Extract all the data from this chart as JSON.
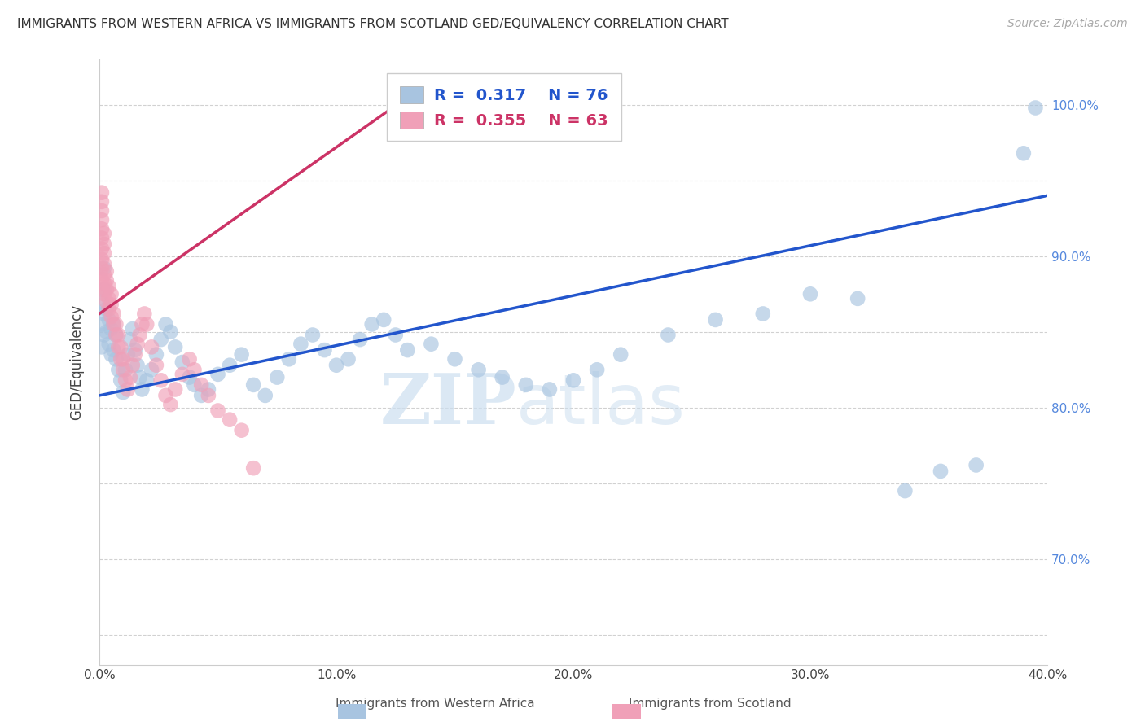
{
  "title": "IMMIGRANTS FROM WESTERN AFRICA VS IMMIGRANTS FROM SCOTLAND GED/EQUIVALENCY CORRELATION CHART",
  "source": "Source: ZipAtlas.com",
  "ylabel": "GED/Equivalency",
  "xlim": [
    0.0,
    0.4
  ],
  "ylim": [
    0.63,
    1.03
  ],
  "xticks": [
    0.0,
    0.05,
    0.1,
    0.15,
    0.2,
    0.25,
    0.3,
    0.35,
    0.4
  ],
  "xticklabels": [
    "0.0%",
    "",
    "10.0%",
    "",
    "20.0%",
    "",
    "30.0%",
    "",
    "40.0%"
  ],
  "yticks": [
    0.65,
    0.7,
    0.75,
    0.8,
    0.85,
    0.9,
    0.95,
    1.0
  ],
  "yticklabels": [
    "",
    "70.0%",
    "",
    "80.0%",
    "",
    "90.0%",
    "",
    "100.0%"
  ],
  "legend_blue_R": "0.317",
  "legend_blue_N": "76",
  "legend_pink_R": "0.355",
  "legend_pink_N": "63",
  "legend_blue_label": "Immigrants from Western Africa",
  "legend_pink_label": "Immigrants from Scotland",
  "blue_color": "#a8c4e0",
  "pink_color": "#f0a0b8",
  "blue_line_color": "#2255cc",
  "pink_line_color": "#cc3366",
  "watermark_zip": "ZIP",
  "watermark_atlas": "atlas",
  "blue_scatter_x": [
    0.001,
    0.001,
    0.001,
    0.002,
    0.002,
    0.002,
    0.002,
    0.003,
    0.003,
    0.004,
    0.004,
    0.005,
    0.005,
    0.006,
    0.006,
    0.007,
    0.007,
    0.008,
    0.009,
    0.01,
    0.011,
    0.012,
    0.013,
    0.014,
    0.015,
    0.016,
    0.017,
    0.018,
    0.02,
    0.022,
    0.024,
    0.026,
    0.028,
    0.03,
    0.032,
    0.035,
    0.038,
    0.04,
    0.043,
    0.046,
    0.05,
    0.055,
    0.06,
    0.065,
    0.07,
    0.075,
    0.08,
    0.085,
    0.09,
    0.095,
    0.1,
    0.105,
    0.11,
    0.115,
    0.12,
    0.125,
    0.13,
    0.14,
    0.15,
    0.16,
    0.17,
    0.18,
    0.19,
    0.2,
    0.21,
    0.22,
    0.24,
    0.26,
    0.28,
    0.3,
    0.32,
    0.34,
    0.355,
    0.37,
    0.39,
    0.395
  ],
  "blue_scatter_y": [
    0.84,
    0.855,
    0.87,
    0.848,
    0.862,
    0.878,
    0.892,
    0.85,
    0.865,
    0.842,
    0.858,
    0.835,
    0.852,
    0.838,
    0.855,
    0.832,
    0.848,
    0.825,
    0.818,
    0.81,
    0.825,
    0.835,
    0.845,
    0.852,
    0.838,
    0.828,
    0.82,
    0.812,
    0.818,
    0.825,
    0.835,
    0.845,
    0.855,
    0.85,
    0.84,
    0.83,
    0.82,
    0.815,
    0.808,
    0.812,
    0.822,
    0.828,
    0.835,
    0.815,
    0.808,
    0.82,
    0.832,
    0.842,
    0.848,
    0.838,
    0.828,
    0.832,
    0.845,
    0.855,
    0.858,
    0.848,
    0.838,
    0.842,
    0.832,
    0.825,
    0.82,
    0.815,
    0.812,
    0.818,
    0.825,
    0.835,
    0.848,
    0.858,
    0.862,
    0.875,
    0.872,
    0.745,
    0.758,
    0.762,
    0.968,
    0.998
  ],
  "pink_scatter_x": [
    0.001,
    0.001,
    0.001,
    0.001,
    0.001,
    0.001,
    0.001,
    0.001,
    0.001,
    0.001,
    0.001,
    0.002,
    0.002,
    0.002,
    0.002,
    0.002,
    0.002,
    0.002,
    0.003,
    0.003,
    0.003,
    0.003,
    0.004,
    0.004,
    0.004,
    0.005,
    0.005,
    0.005,
    0.006,
    0.006,
    0.007,
    0.007,
    0.008,
    0.008,
    0.009,
    0.009,
    0.01,
    0.01,
    0.011,
    0.012,
    0.013,
    0.014,
    0.015,
    0.016,
    0.017,
    0.018,
    0.019,
    0.02,
    0.022,
    0.024,
    0.026,
    0.028,
    0.03,
    0.032,
    0.035,
    0.038,
    0.04,
    0.043,
    0.046,
    0.05,
    0.055,
    0.06,
    0.065
  ],
  "pink_scatter_y": [
    0.878,
    0.885,
    0.892,
    0.898,
    0.905,
    0.912,
    0.918,
    0.924,
    0.93,
    0.936,
    0.942,
    0.875,
    0.882,
    0.888,
    0.895,
    0.902,
    0.908,
    0.915,
    0.87,
    0.878,
    0.884,
    0.89,
    0.865,
    0.872,
    0.88,
    0.86,
    0.868,
    0.875,
    0.855,
    0.862,
    0.848,
    0.855,
    0.84,
    0.848,
    0.832,
    0.84,
    0.825,
    0.832,
    0.818,
    0.812,
    0.82,
    0.828,
    0.835,
    0.842,
    0.848,
    0.855,
    0.862,
    0.855,
    0.84,
    0.828,
    0.818,
    0.808,
    0.802,
    0.812,
    0.822,
    0.832,
    0.825,
    0.815,
    0.808,
    0.798,
    0.792,
    0.785,
    0.76
  ],
  "blue_trendline_x": [
    0.0,
    0.4
  ],
  "blue_trendline_y": [
    0.808,
    0.94
  ],
  "pink_trendline_x": [
    0.0,
    0.13
  ],
  "pink_trendline_y": [
    0.862,
    1.005
  ]
}
